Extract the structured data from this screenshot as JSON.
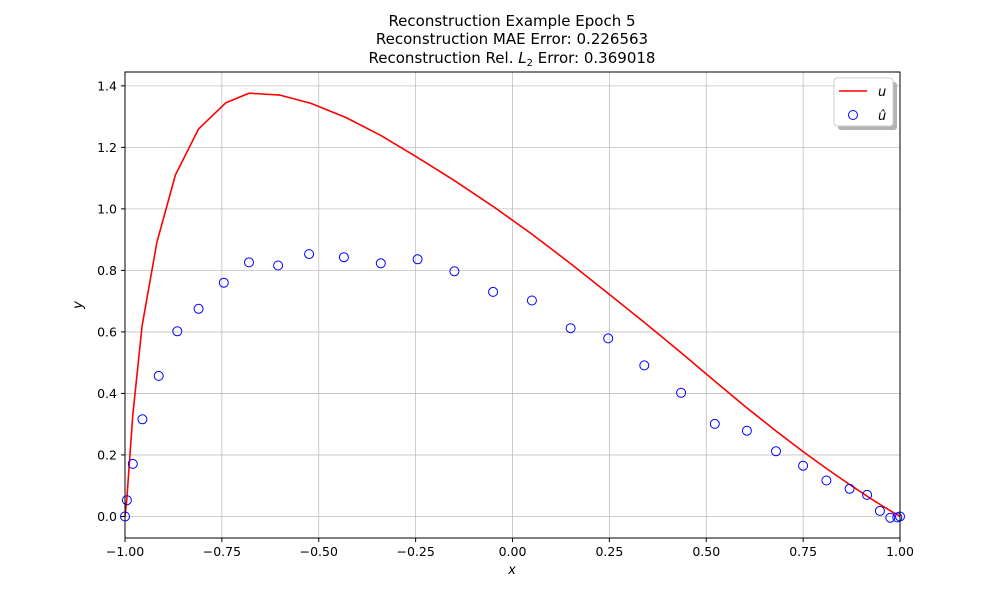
{
  "figure": {
    "title_lines": [
      "Reconstruction Example Epoch 5",
      "Reconstruction MAE Error: 0.226563",
      "Reconstruction Rel. L2 Error: 0.369018"
    ]
  },
  "chart_data": {
    "type": "line",
    "title": "Reconstruction Example Epoch 5 / Reconstruction MAE Error: 0.226563 / Reconstruction Rel. L2 Error: 0.369018",
    "xlabel": "x",
    "ylabel": "y",
    "xlim": [
      -1.0,
      1.0
    ],
    "ylim": [
      -0.07,
      1.445
    ],
    "xticks": [
      -1.0,
      -0.75,
      -0.5,
      -0.25,
      0.0,
      0.25,
      0.5,
      0.75,
      1.0
    ],
    "xtick_labels": [
      "−1.00",
      "−0.75",
      "−0.50",
      "−0.25",
      "0.00",
      "0.25",
      "0.50",
      "0.75",
      "1.00"
    ],
    "yticks": [
      0.0,
      0.2,
      0.4,
      0.6,
      0.8,
      1.0,
      1.2,
      1.4
    ],
    "ytick_labels": [
      "0.0",
      "0.2",
      "0.4",
      "0.6",
      "0.8",
      "1.0",
      "1.2",
      "1.4"
    ],
    "grid": true,
    "legend": {
      "placement": "top-right",
      "shadow": true
    },
    "series": [
      {
        "name": "u",
        "kind": "line",
        "color": "#ff0000",
        "points": [
          [
            -1.0,
            0.0
          ],
          [
            -0.995,
            0.06
          ],
          [
            -0.98,
            0.33
          ],
          [
            -0.956,
            0.62
          ],
          [
            -0.918,
            0.89
          ],
          [
            -0.87,
            1.11
          ],
          [
            -0.81,
            1.26
          ],
          [
            -0.74,
            1.345
          ],
          [
            -0.68,
            1.376
          ],
          [
            -0.6,
            1.37
          ],
          [
            -0.52,
            1.343
          ],
          [
            -0.43,
            1.297
          ],
          [
            -0.34,
            1.239
          ],
          [
            -0.25,
            1.171
          ],
          [
            -0.15,
            1.092
          ],
          [
            -0.05,
            1.008
          ],
          [
            0.05,
            0.918
          ],
          [
            0.15,
            0.822
          ],
          [
            0.25,
            0.722
          ],
          [
            0.34,
            0.631
          ],
          [
            0.43,
            0.538
          ],
          [
            0.52,
            0.442
          ],
          [
            0.6,
            0.358
          ],
          [
            0.68,
            0.278
          ],
          [
            0.75,
            0.211
          ],
          [
            0.81,
            0.156
          ],
          [
            0.87,
            0.104
          ],
          [
            0.92,
            0.062
          ],
          [
            0.955,
            0.034
          ],
          [
            0.98,
            0.015
          ],
          [
            0.995,
            0.004
          ],
          [
            1.0,
            0.0
          ]
        ]
      },
      {
        "name": "û",
        "kind": "scatter",
        "color": "#0000ff",
        "points": [
          [
            -1.0,
            0.0
          ],
          [
            -0.995,
            0.053
          ],
          [
            -0.98,
            0.171
          ],
          [
            -0.955,
            0.316
          ],
          [
            -0.913,
            0.457
          ],
          [
            -0.865,
            0.602
          ],
          [
            -0.81,
            0.675
          ],
          [
            -0.745,
            0.76
          ],
          [
            -0.68,
            0.826
          ],
          [
            -0.605,
            0.816
          ],
          [
            -0.525,
            0.853
          ],
          [
            -0.435,
            0.843
          ],
          [
            -0.34,
            0.823
          ],
          [
            -0.245,
            0.836
          ],
          [
            -0.15,
            0.797
          ],
          [
            -0.05,
            0.73
          ],
          [
            0.05,
            0.702
          ],
          [
            0.15,
            0.612
          ],
          [
            0.247,
            0.579
          ],
          [
            0.34,
            0.491
          ],
          [
            0.435,
            0.402
          ],
          [
            0.522,
            0.301
          ],
          [
            0.605,
            0.279
          ],
          [
            0.68,
            0.212
          ],
          [
            0.75,
            0.165
          ],
          [
            0.81,
            0.117
          ],
          [
            0.87,
            0.09
          ],
          [
            0.915,
            0.07
          ],
          [
            0.948,
            0.018
          ],
          [
            0.975,
            -0.004
          ],
          [
            0.993,
            -0.003
          ],
          [
            1.0,
            0.0
          ]
        ]
      }
    ]
  }
}
